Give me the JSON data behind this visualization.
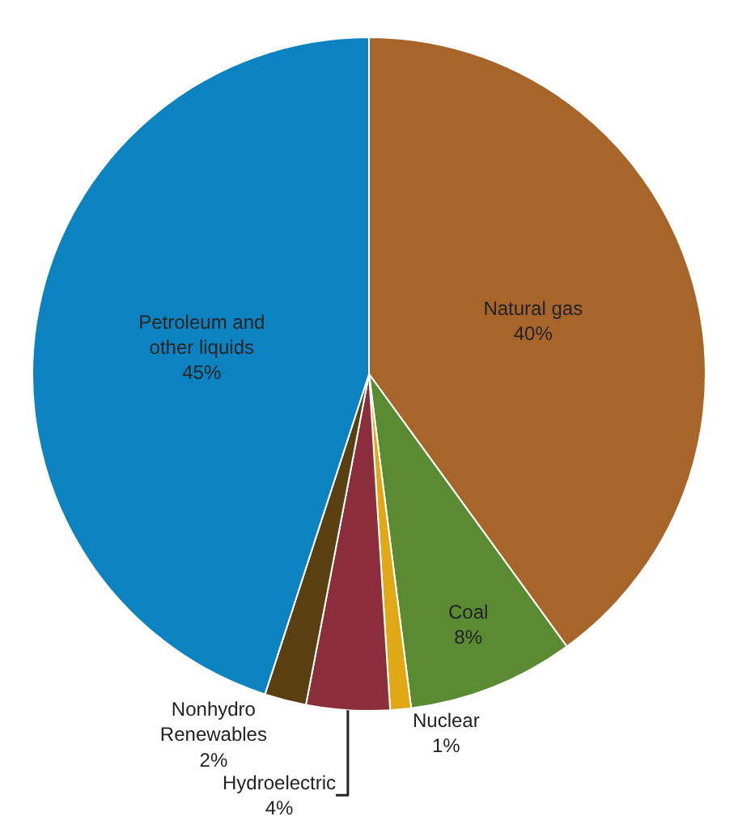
{
  "chart_data": {
    "type": "pie",
    "categories": [
      "Natural gas",
      "Coal",
      "Nuclear",
      "Hydroelectric",
      "Nonhydro Renewables",
      "Petroleum and other liquids"
    ],
    "values": [
      40,
      8,
      1,
      4,
      2,
      45
    ],
    "value_labels": [
      "40%",
      "8%",
      "1%",
      "4%",
      "2%",
      "45%"
    ],
    "colors": [
      "#a8652a",
      "#5a8a32",
      "#e0a814",
      "#8b2d3a",
      "#5a4010",
      "#0b83c0"
    ],
    "legend": false
  }
}
